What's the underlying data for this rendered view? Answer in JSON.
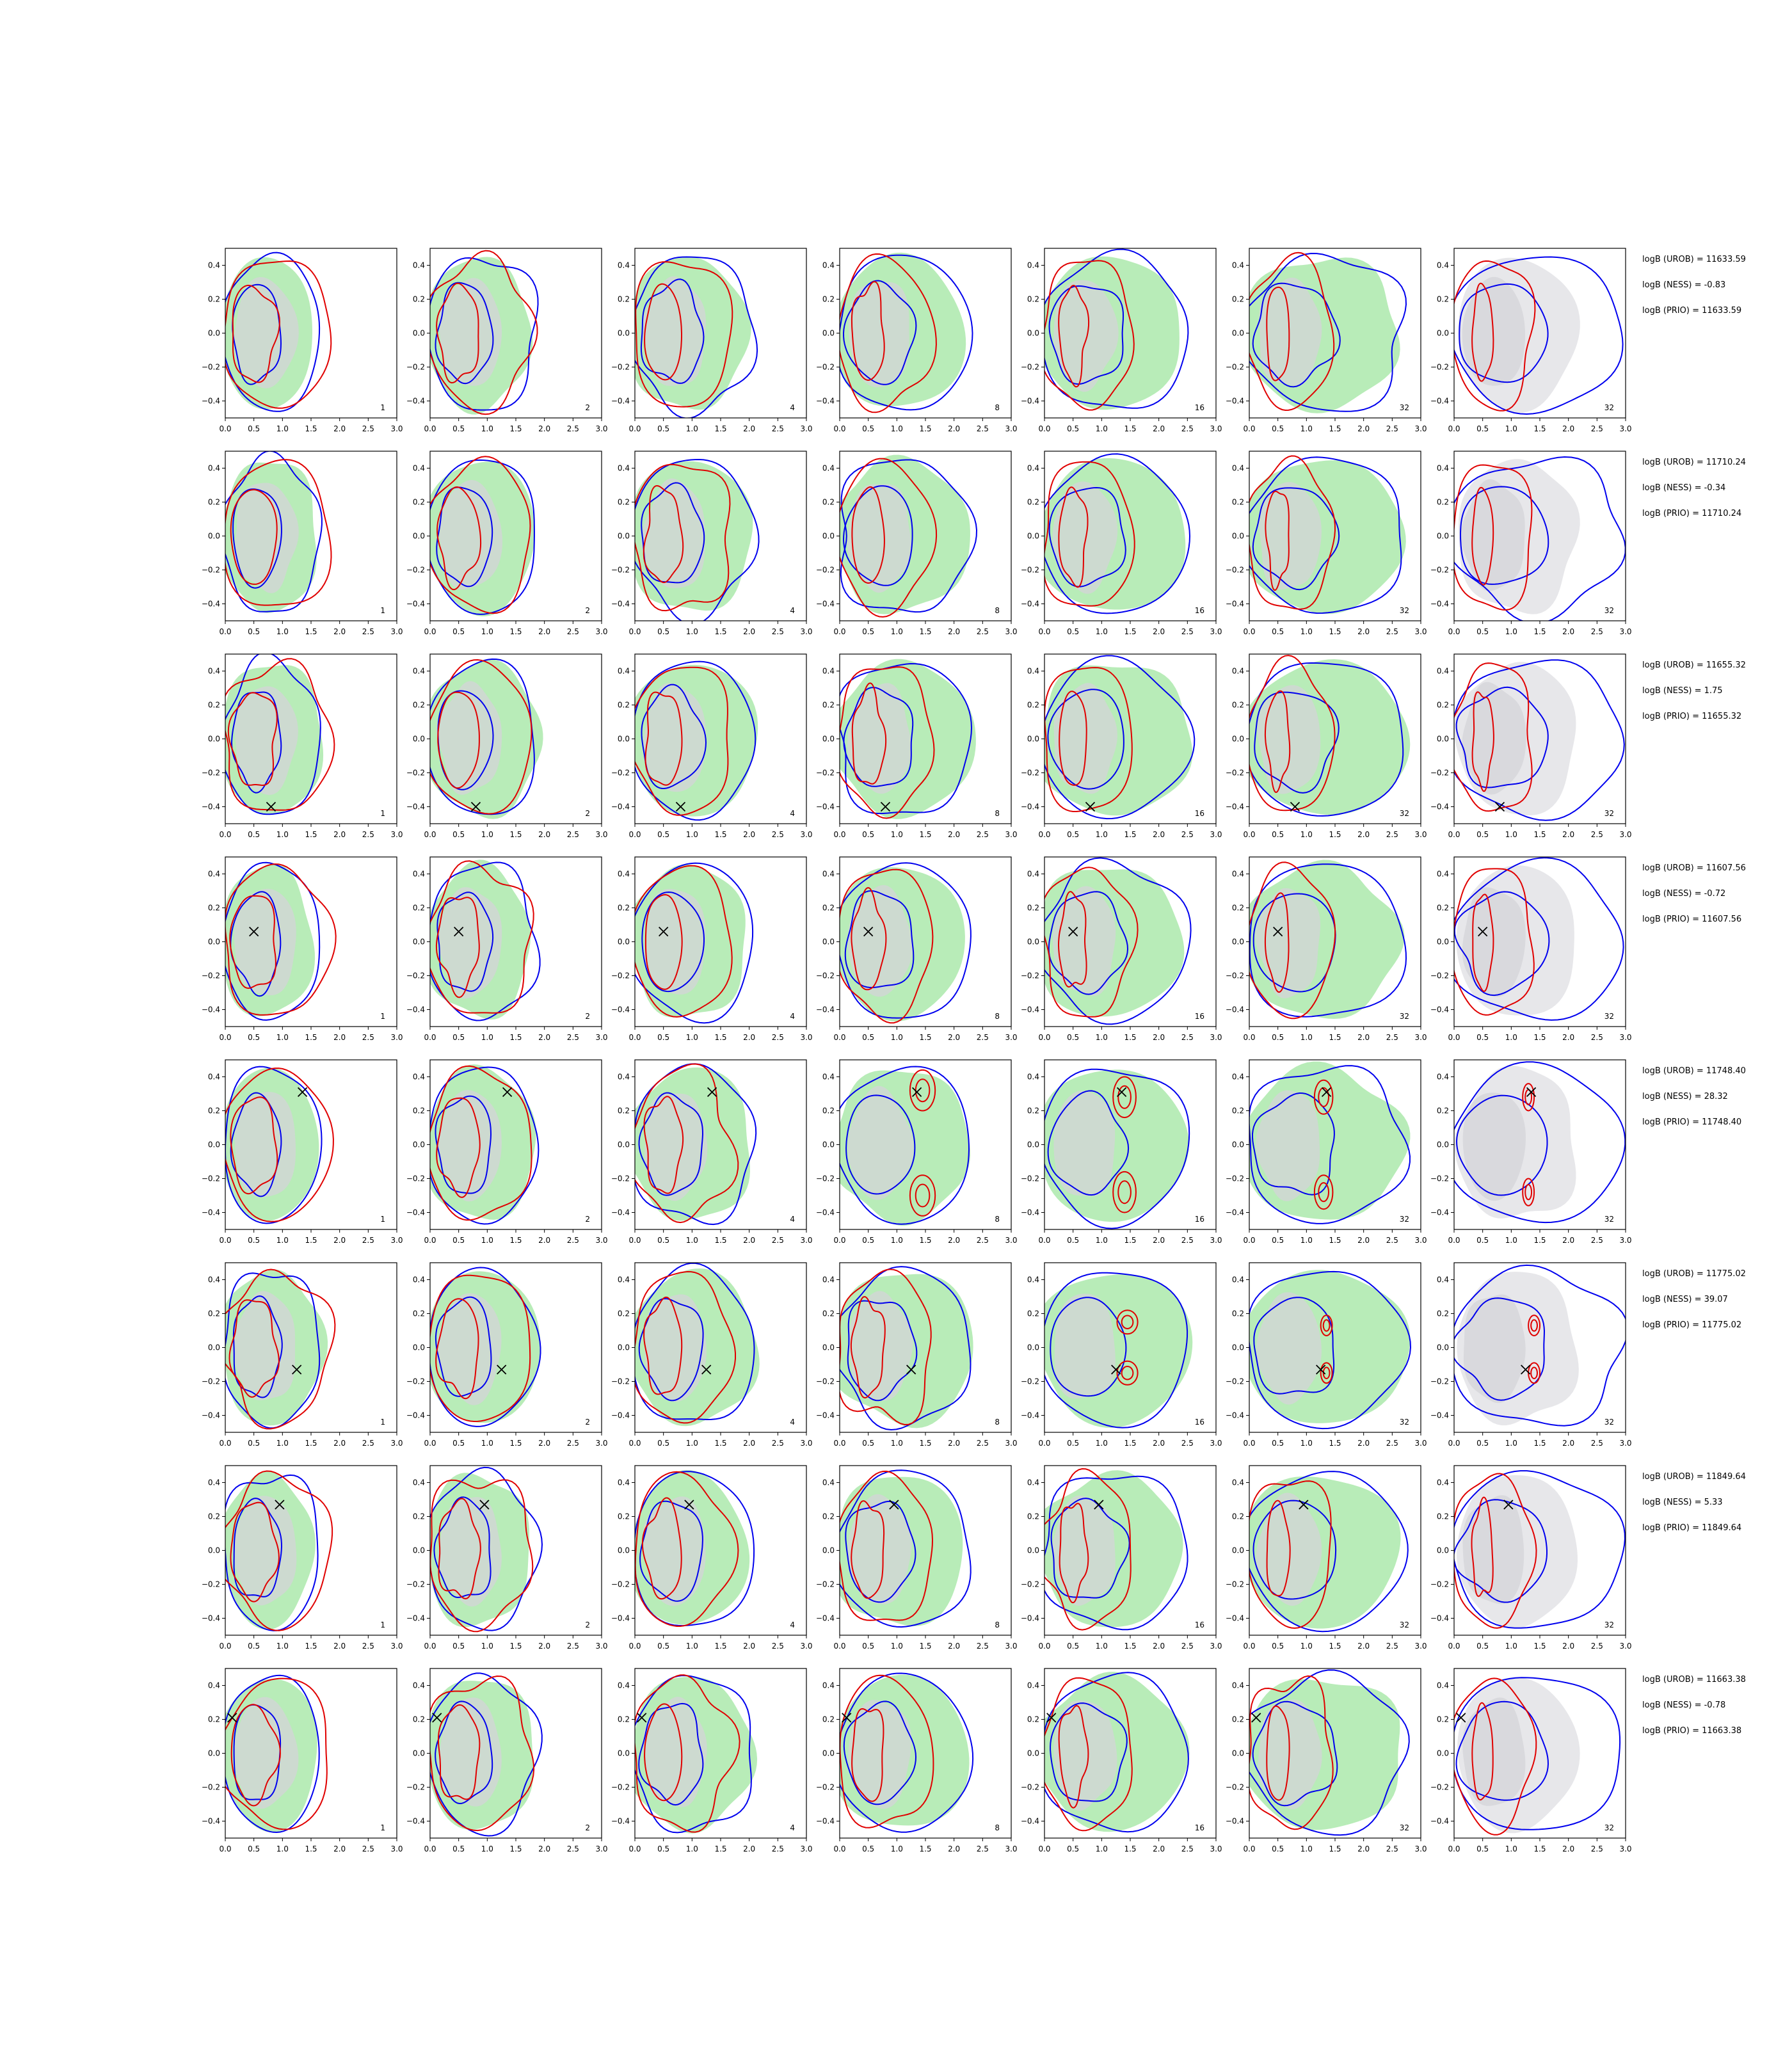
{
  "chart_data": {
    "type": "contour",
    "grid": {
      "rows": 8,
      "cols": 7
    },
    "xlim": [
      0,
      3.0
    ],
    "ylim": [
      -0.5,
      0.5
    ],
    "xticks": [
      "0.0",
      "0.5",
      "1.0",
      "1.5",
      "2.0",
      "2.5",
      "3.0"
    ],
    "yticks": [
      "0.4",
      "0.2",
      "0.0",
      "−0.2",
      "−0.4"
    ],
    "ytick_values": [
      0.4,
      0.2,
      0.0,
      -0.2,
      -0.4
    ],
    "panel_labels": [
      "1",
      "2",
      "4",
      "8",
      "16",
      "32",
      "32"
    ],
    "colors": {
      "green_fill": "#b8ecb8",
      "gray_fill": "#d4d4d8",
      "blue": "#0000ee",
      "red": "#e00000",
      "marker": "#000000"
    },
    "rows": [
      {
        "marker": null,
        "texts": [
          "logB (UROB) = 11633.59",
          "logB (NESS) = -0.83",
          "logB (PRIO) = 11633.59"
        ]
      },
      {
        "marker": null,
        "texts": [
          "logB (UROB) = 11710.24",
          "logB (NESS) = -0.34",
          "logB (PRIO) = 11710.24"
        ]
      },
      {
        "marker": {
          "x": 0.8,
          "y": -0.4
        },
        "texts": [
          "logB (UROB) = 11655.32",
          "logB (NESS) = 1.75",
          "logB (PRIO) = 11655.32"
        ]
      },
      {
        "marker": {
          "x": 0.5,
          "y": 0.06
        },
        "texts": [
          "logB (UROB) = 11607.56",
          "logB (NESS) = -0.72",
          "logB (PRIO) = 11607.56"
        ]
      },
      {
        "marker": {
          "x": 1.35,
          "y": 0.31
        },
        "texts": [
          "logB (UROB) = 11748.40",
          "logB (NESS) = 28.32",
          "logB (PRIO) = 11748.40"
        ]
      },
      {
        "marker": {
          "x": 1.25,
          "y": -0.13
        },
        "texts": [
          "logB (UROB) = 11775.02",
          "logB (NESS) = 39.07",
          "logB (PRIO) = 11775.02"
        ]
      },
      {
        "marker": {
          "x": 0.95,
          "y": 0.27
        },
        "texts": [
          "logB (UROB) = 11849.64",
          "logB (NESS) = 5.33",
          "logB (PRIO) = 11849.64"
        ]
      },
      {
        "marker": {
          "x": 0.12,
          "y": 0.21
        },
        "texts": [
          "logB (UROB) = 11663.38",
          "logB (NESS) = -0.78",
          "logB (PRIO) = 11663.38"
        ]
      }
    ]
  }
}
